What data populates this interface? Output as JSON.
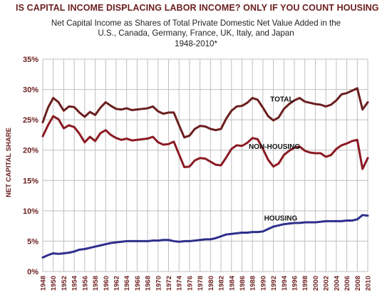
{
  "title": "IS CAPITAL INCOME DISPLACING LABOR INCOME? ONLY IF YOU COUNT HOUSING",
  "subtitle_lines": [
    "Net Capital Income as Shares of Total Private Domestic Net Value Added in the",
    "U.S., Canada, Germany, France, UK, Italy, and Japan",
    "1948-2010*"
  ],
  "chart_data": {
    "type": "line",
    "title": "IS CAPITAL INCOME DISPLACING LABOR INCOME? ONLY IF YOU COUNT HOUSING",
    "subtitle": "Net Capital Income as Shares of Total Private Domestic Net Value Added in the U.S., Canada, Germany, France, UK, Italy, and Japan 1948-2010*",
    "xlabel": "",
    "ylabel": "NET CAPITAL SHARE",
    "xlim": [
      1948,
      2010
    ],
    "ylim": [
      0,
      35
    ],
    "x_ticks": [
      1948,
      1950,
      1952,
      1954,
      1956,
      1958,
      1960,
      1962,
      1964,
      1966,
      1968,
      1970,
      1972,
      1974,
      1976,
      1978,
      1980,
      1982,
      1984,
      1986,
      1988,
      1990,
      1992,
      1994,
      1996,
      1998,
      2000,
      2002,
      2004,
      2006,
      2008,
      2010
    ],
    "y_ticks": [
      0,
      5,
      10,
      15,
      20,
      25,
      30,
      35
    ],
    "y_tick_labels": [
      "0%",
      "5%",
      "10%",
      "15%",
      "20%",
      "25%",
      "30%",
      "35%"
    ],
    "grid": true,
    "x": [
      1948,
      1949,
      1950,
      1951,
      1952,
      1953,
      1954,
      1955,
      1956,
      1957,
      1958,
      1959,
      1960,
      1961,
      1962,
      1963,
      1964,
      1965,
      1966,
      1967,
      1968,
      1969,
      1970,
      1971,
      1972,
      1973,
      1974,
      1975,
      1976,
      1977,
      1978,
      1979,
      1980,
      1981,
      1982,
      1983,
      1984,
      1985,
      1986,
      1987,
      1988,
      1989,
      1990,
      1991,
      1992,
      1993,
      1994,
      1995,
      1996,
      1997,
      1998,
      1999,
      2000,
      2001,
      2002,
      2003,
      2004,
      2005,
      2006,
      2007,
      2008,
      2009,
      2010
    ],
    "series": [
      {
        "name": "TOTAL",
        "color": "#6b1e1e",
        "values": [
          24.6,
          27.0,
          28.6,
          27.9,
          26.5,
          27.2,
          27.1,
          26.2,
          25.5,
          26.3,
          25.8,
          27.0,
          27.9,
          27.3,
          26.8,
          26.7,
          26.9,
          26.6,
          26.7,
          26.8,
          26.9,
          27.2,
          26.4,
          26.0,
          26.2,
          26.2,
          24.1,
          22.1,
          22.4,
          23.5,
          24.0,
          23.9,
          23.5,
          23.3,
          23.5,
          25.2,
          26.5,
          27.2,
          27.3,
          27.8,
          28.6,
          28.3,
          27.0,
          25.6,
          24.9,
          25.4,
          26.8,
          27.6,
          28.2,
          28.6,
          28.0,
          27.8,
          27.6,
          27.5,
          27.2,
          27.5,
          28.2,
          29.2,
          29.4,
          29.8,
          30.2,
          26.7,
          27.9
        ]
      },
      {
        "name": "NON-HOUSING",
        "color": "#8b1a22",
        "values": [
          22.3,
          24.1,
          25.6,
          25.1,
          23.6,
          24.1,
          23.8,
          22.7,
          21.3,
          22.2,
          21.5,
          22.8,
          23.3,
          22.5,
          22.0,
          21.7,
          21.9,
          21.6,
          21.7,
          21.8,
          21.9,
          22.2,
          21.3,
          20.9,
          21.0,
          21.4,
          19.3,
          17.2,
          17.3,
          18.3,
          18.7,
          18.6,
          18.1,
          17.6,
          17.5,
          18.8,
          20.2,
          20.8,
          20.7,
          21.2,
          22.0,
          21.8,
          20.2,
          18.4,
          17.3,
          17.8,
          19.2,
          19.9,
          20.4,
          20.6,
          19.9,
          19.6,
          19.5,
          19.5,
          18.9,
          19.2,
          20.2,
          20.8,
          21.1,
          21.5,
          21.7,
          16.9,
          18.7
        ]
      },
      {
        "name": "HOUSING",
        "color": "#2e2f8c",
        "values": [
          2.3,
          2.7,
          3.0,
          2.9,
          3.0,
          3.1,
          3.3,
          3.6,
          3.7,
          3.9,
          4.1,
          4.3,
          4.5,
          4.7,
          4.8,
          4.9,
          5.0,
          5.0,
          5.0,
          5.0,
          5.0,
          5.1,
          5.1,
          5.2,
          5.2,
          5.0,
          4.9,
          5.0,
          5.0,
          5.1,
          5.2,
          5.3,
          5.3,
          5.5,
          5.8,
          6.1,
          6.2,
          6.3,
          6.4,
          6.4,
          6.5,
          6.5,
          6.6,
          7.0,
          7.4,
          7.6,
          7.8,
          7.9,
          8.0,
          8.0,
          8.1,
          8.1,
          8.1,
          8.2,
          8.3,
          8.3,
          8.3,
          8.3,
          8.4,
          8.4,
          8.6,
          9.3,
          9.2
        ]
      }
    ],
    "legend": "inline labels near each line"
  },
  "colors": {
    "title": "#6b1e1e",
    "grid": "#bfbfbf",
    "axis_text": "#6b1e1e"
  }
}
